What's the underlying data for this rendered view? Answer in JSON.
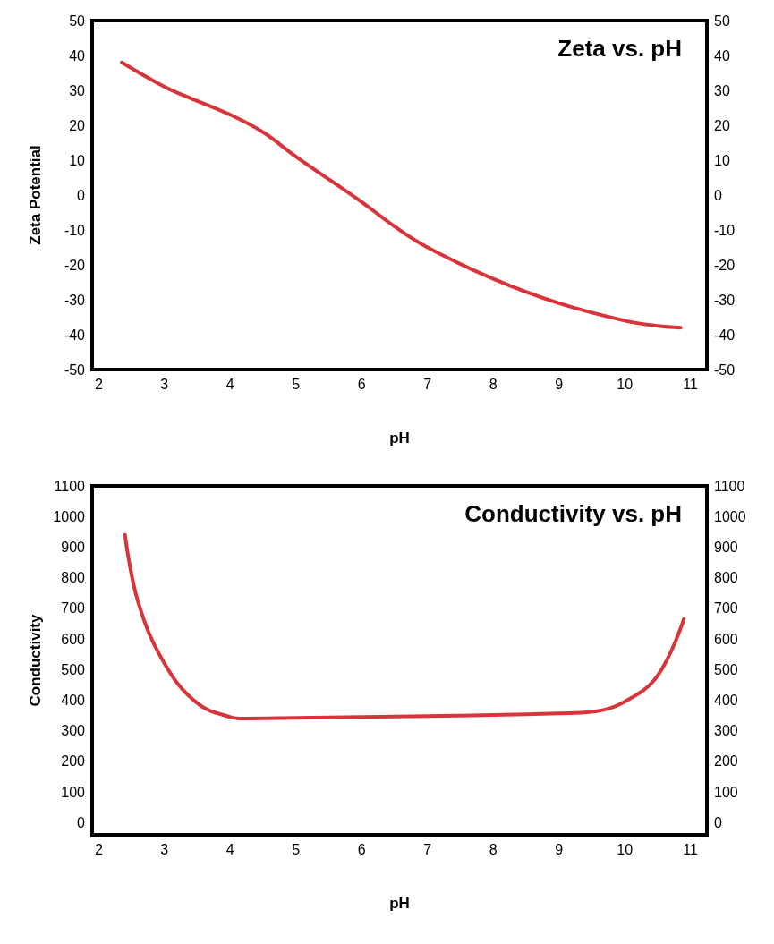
{
  "chart_data": [
    {
      "type": "line",
      "title": "Zeta vs. pH",
      "xlabel": "pH",
      "ylabel": "Zeta Potential",
      "x": [
        2.35,
        3,
        3.3,
        4,
        4.5,
        5,
        6,
        6.5,
        7,
        8,
        9,
        10,
        10.5,
        10.85
      ],
      "series": [
        {
          "color": "#d9343a",
          "values": [
            38,
            31,
            28.5,
            23,
            18,
            11,
            -2,
            -9,
            -15,
            -24,
            -31,
            -36,
            -37.5,
            -38
          ]
        }
      ],
      "xlim": [
        1.9,
        11.25
      ],
      "xticks": [
        2,
        3,
        4,
        5,
        6,
        7,
        8,
        9,
        10,
        11
      ],
      "ylim": [
        -50,
        50
      ],
      "yticks": [
        -50,
        -40,
        -30,
        -20,
        -10,
        0,
        10,
        20,
        30,
        40,
        50
      ],
      "y2lim": [
        -50,
        50
      ],
      "y2ticks": [
        -50,
        -40,
        -30,
        -20,
        -10,
        0,
        10,
        20,
        30,
        40,
        50
      ],
      "grid": false,
      "marker": "none",
      "line_style": "solid"
    },
    {
      "type": "line",
      "title": "Conductivity vs. pH",
      "xlabel": "pH",
      "ylabel": "Conductivity",
      "x": [
        2.4,
        2.6,
        3,
        3.5,
        4,
        4.2,
        5,
        6,
        7,
        8,
        9,
        9.5,
        10,
        10.5,
        10.9
      ],
      "series": [
        {
          "color": "#d9343a",
          "values": [
            940,
            720,
            520,
            390,
            345,
            340,
            342,
            345,
            348,
            352,
            357,
            362,
            395,
            480,
            665
          ]
        }
      ],
      "xlim": [
        1.9,
        11.25
      ],
      "xticks": [
        2,
        3,
        4,
        5,
        6,
        7,
        8,
        9,
        10,
        11
      ],
      "ylim": [
        -40,
        1100
      ],
      "yticks": [
        0,
        100,
        200,
        300,
        400,
        500,
        600,
        700,
        800,
        900,
        1000,
        1100
      ],
      "y2lim": [
        -40,
        1100
      ],
      "y2ticks": [
        0,
        100,
        200,
        300,
        400,
        500,
        600,
        700,
        800,
        900,
        1000,
        1100
      ],
      "grid": false,
      "marker": "none",
      "line_style": "solid"
    }
  ]
}
